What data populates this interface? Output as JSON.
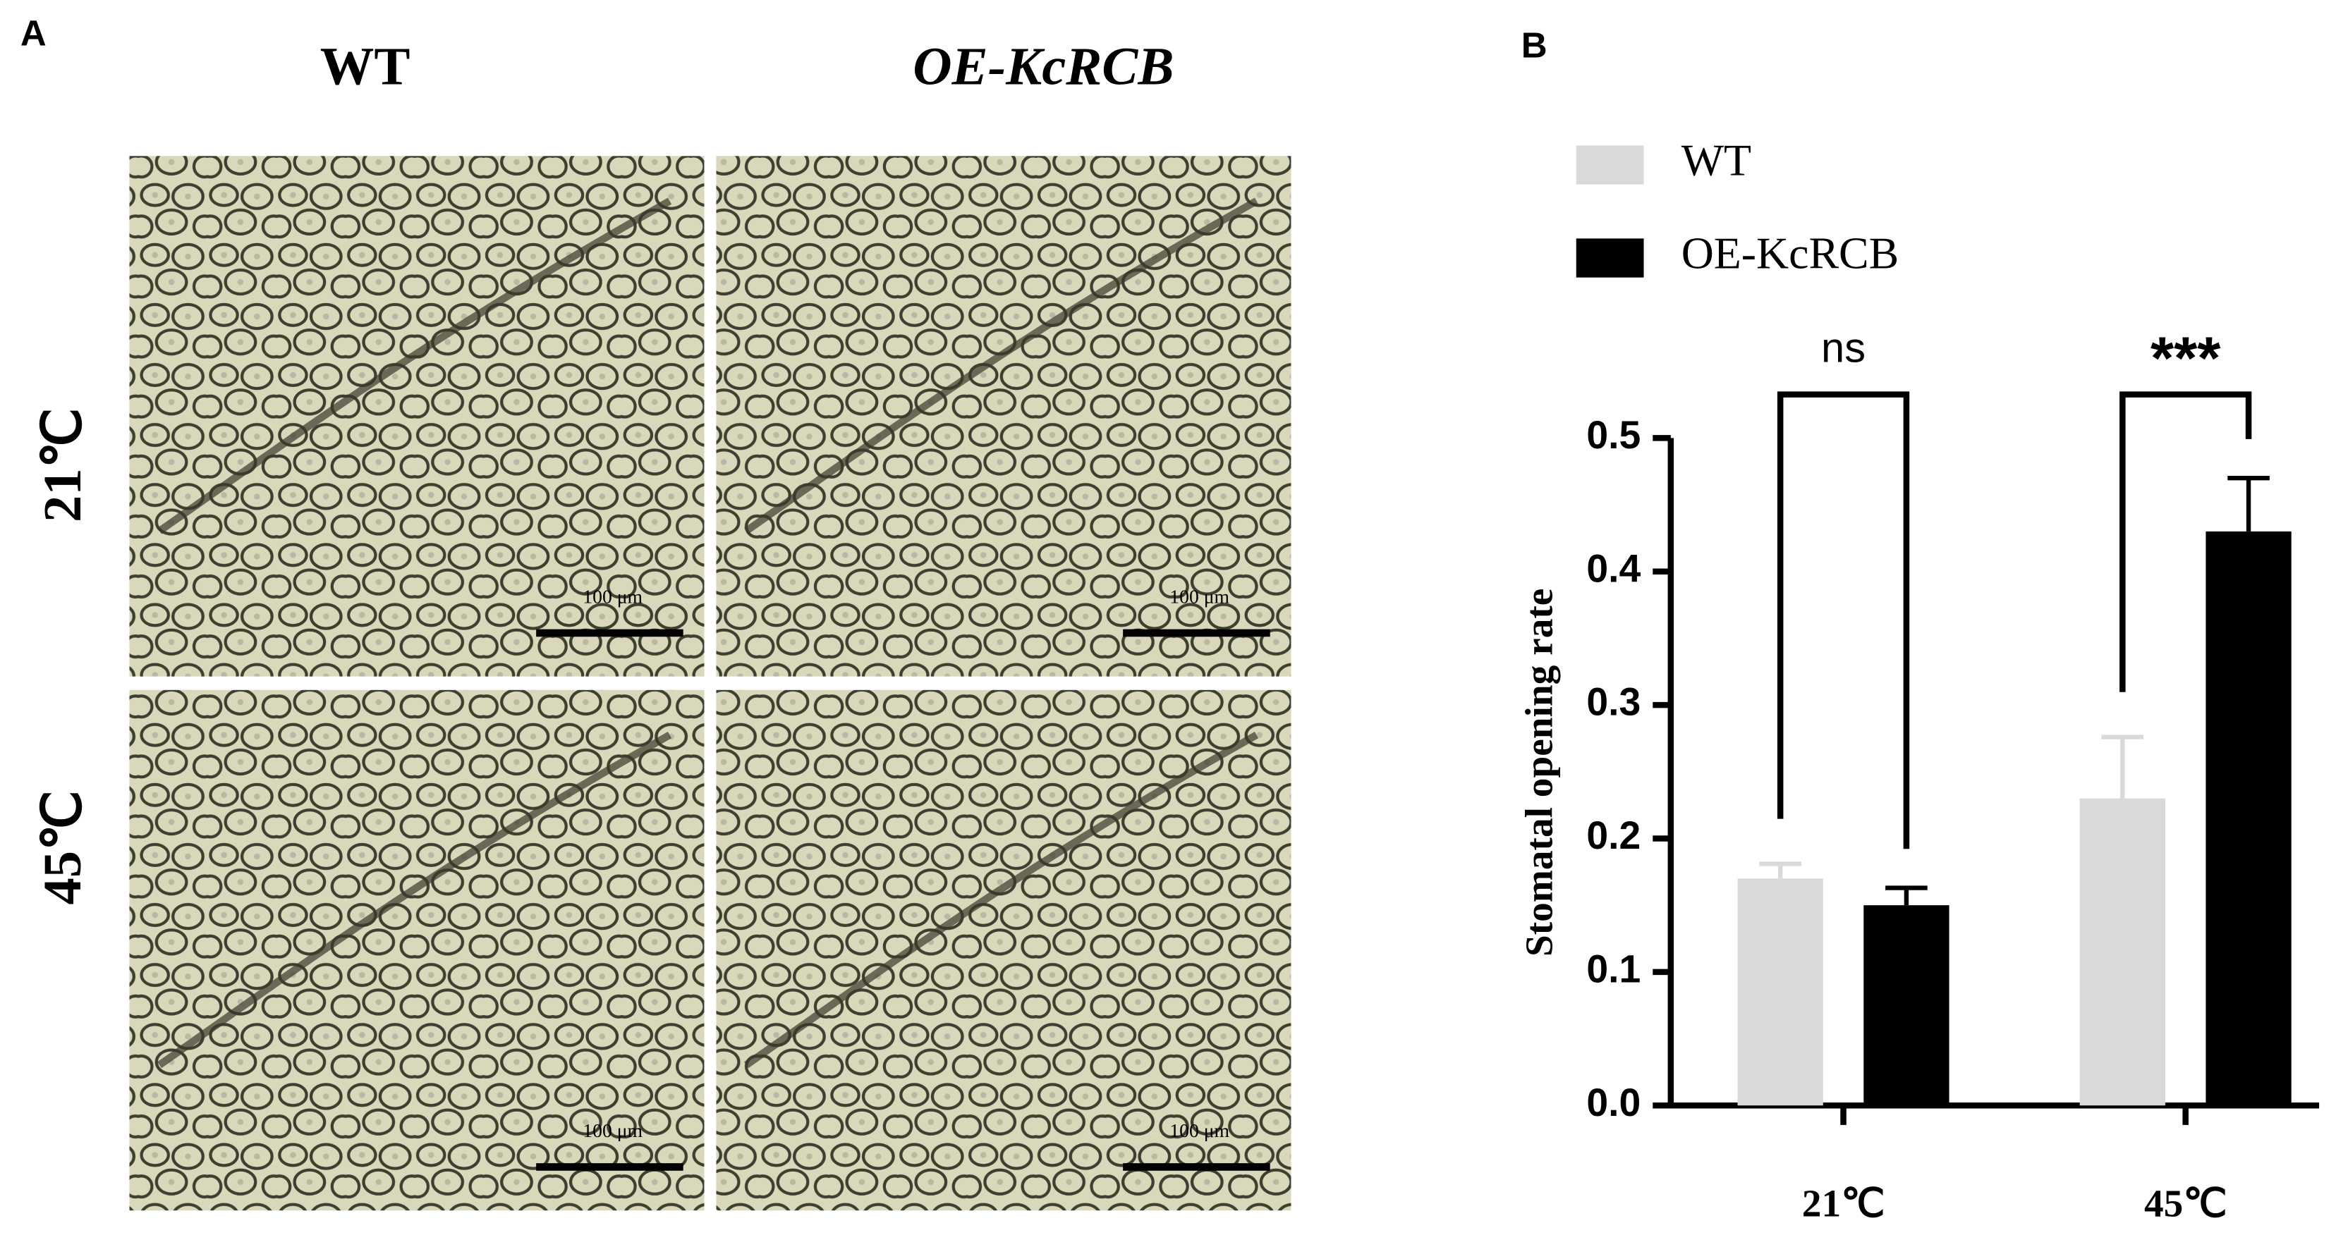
{
  "panel_a": {
    "label": "A",
    "columns": [
      "WT",
      "OE-KcRCB"
    ],
    "rows": [
      "21℃",
      "45℃"
    ],
    "scale_bar": "100 μm"
  },
  "panel_b_label": "B",
  "chart_data": {
    "type": "bar",
    "y_label": "Stomatal opening rate",
    "categories": [
      "21℃",
      "45℃"
    ],
    "series": [
      {
        "name": "WT",
        "color": "#d9d9d9",
        "values": [
          0.17,
          0.23
        ],
        "errors": [
          0.011,
          0.046
        ]
      },
      {
        "name": "OE-KcRCB",
        "color": "#000000",
        "values": [
          0.15,
          0.43
        ],
        "errors": [
          0.013,
          0.04
        ]
      }
    ],
    "significance": [
      "ns",
      "***"
    ],
    "ylim": [
      0,
      0.5
    ],
    "yticks": [
      {
        "value": 0,
        "label": "0.0"
      },
      0.1,
      0.2,
      0.3,
      0.4,
      0.5
    ],
    "grid": false,
    "legend": "top-left"
  }
}
